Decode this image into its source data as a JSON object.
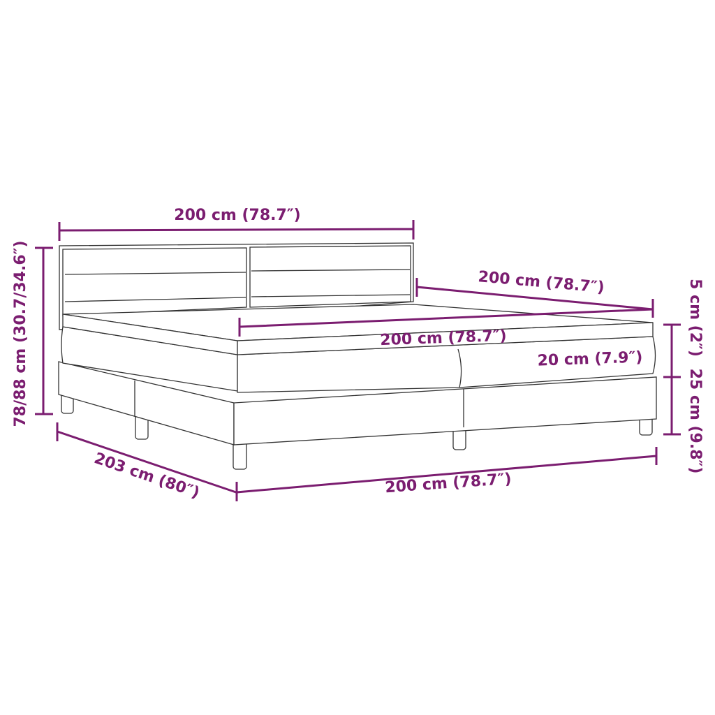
{
  "colors": {
    "dimension": "#7b1d70",
    "outline": "#333333"
  },
  "labels": {
    "headboard_width": "200 cm (78.7″)",
    "total_height": "78/88 cm (30.7/34.6″)",
    "bed_depth": "200 cm (78.7″)",
    "mattress_width": "200 cm (78.7″)",
    "topper_height": "5 cm (2″)",
    "mattress_height": "20 cm (7.9″)",
    "base_height": "25 cm (9.8″)",
    "total_length": "203 cm (80″)",
    "total_width": "200 cm (78.7″)"
  }
}
